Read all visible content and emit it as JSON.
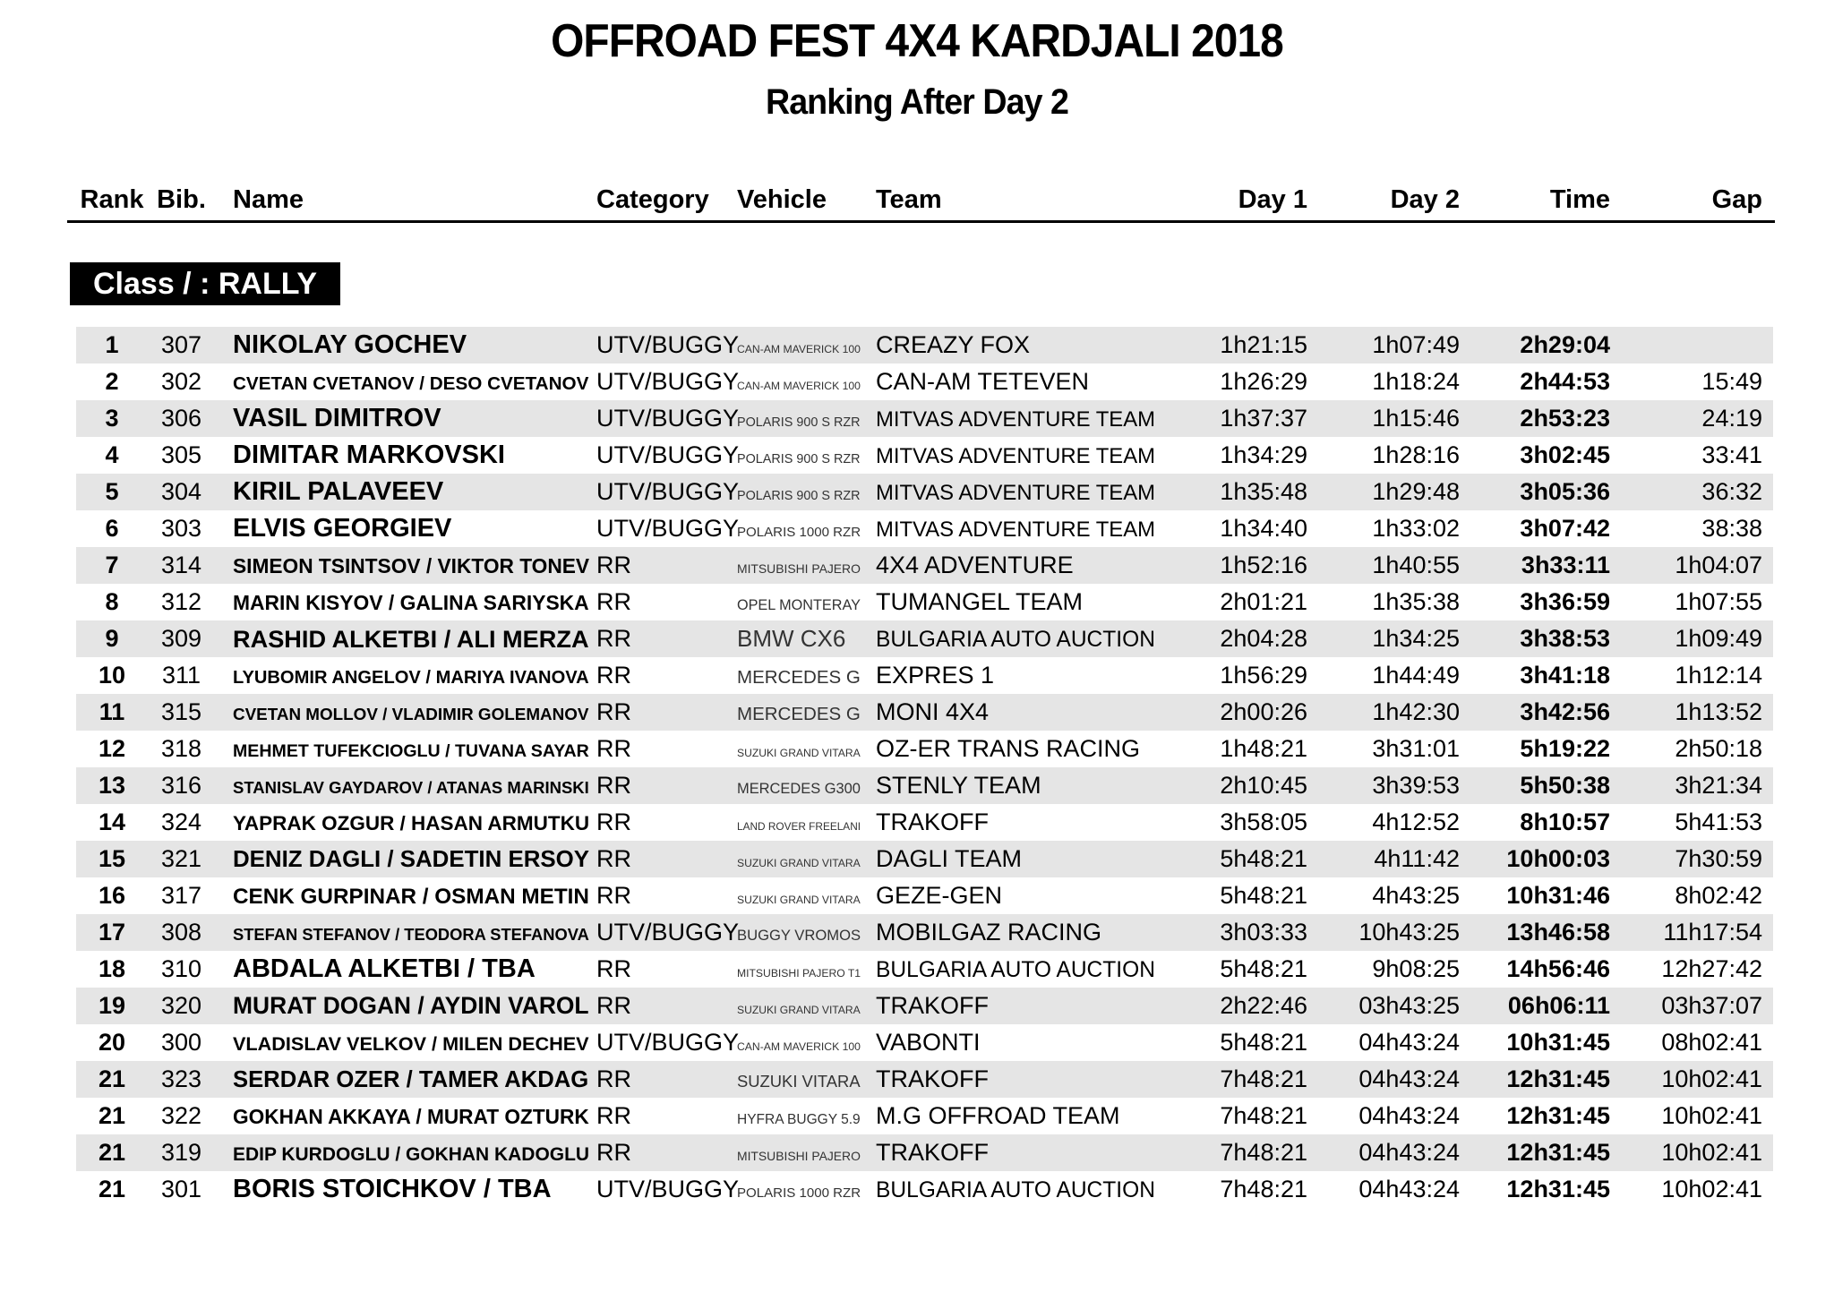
{
  "page": {
    "title": "OFFROAD FEST 4X4 KARDJALI 2018",
    "subtitle": "Ranking After Day 2"
  },
  "colors": {
    "row_stripe": "#e5e5e5",
    "class_bar_bg": "#000000",
    "class_bar_text": "#ffffff",
    "text": "#000000"
  },
  "table": {
    "class_label": "Class /  : RALLY",
    "columns": [
      "Rank",
      "Bib.",
      "Name",
      "Category",
      "Vehicle",
      "Team",
      "Day 1",
      "Day 2",
      "Time",
      "Gap"
    ],
    "rows": [
      {
        "rank": "1",
        "bib": "307",
        "name": "NIKOLAY GOCHEV",
        "category": "UTV/BUGGY",
        "vehicle": "CAN-AM MAVERICK 100",
        "team": "CREAZY FOX",
        "day1": "1h21:15",
        "day2": "1h07:49",
        "time": "2h29:04",
        "gap": ""
      },
      {
        "rank": "2",
        "bib": "302",
        "name": "CVETAN CVETANOV / DESO CVETANOV",
        "category": "UTV/BUGGY",
        "vehicle": "CAN-AM MAVERICK 100",
        "team": "CAN-AM TETEVEN",
        "day1": "1h26:29",
        "day2": "1h18:24",
        "time": "2h44:53",
        "gap": "15:49"
      },
      {
        "rank": "3",
        "bib": "306",
        "name": "VASIL DIMITROV",
        "category": "UTV/BUGGY",
        "vehicle": "POLARIS 900 S RZR",
        "team": "MITVAS ADVENTURE TEAM",
        "day1": "1h37:37",
        "day2": "1h15:46",
        "time": "2h53:23",
        "gap": "24:19"
      },
      {
        "rank": "4",
        "bib": "305",
        "name": "DIMITAR MARKOVSKI",
        "category": "UTV/BUGGY",
        "vehicle": "POLARIS 900 S RZR",
        "team": "MITVAS ADVENTURE TEAM",
        "day1": "1h34:29",
        "day2": "1h28:16",
        "time": "3h02:45",
        "gap": "33:41"
      },
      {
        "rank": "5",
        "bib": "304",
        "name": "KIRIL PALAVEEV",
        "category": "UTV/BUGGY",
        "vehicle": "POLARIS 900 S RZR",
        "team": "MITVAS ADVENTURE TEAM",
        "day1": "1h35:48",
        "day2": "1h29:48",
        "time": "3h05:36",
        "gap": "36:32"
      },
      {
        "rank": "6",
        "bib": "303",
        "name": "ELVIS GEORGIEV",
        "category": "UTV/BUGGY",
        "vehicle": "POLARIS 1000 RZR",
        "team": "MITVAS ADVENTURE TEAM",
        "day1": "1h34:40",
        "day2": "1h33:02",
        "time": "3h07:42",
        "gap": "38:38"
      },
      {
        "rank": "7",
        "bib": "314",
        "name": "SIMEON TSINTSOV / VIKTOR TONEV",
        "category": "RR",
        "vehicle": "MITSUBISHI PAJERO",
        "team": "4X4 ADVENTURE",
        "day1": "1h52:16",
        "day2": "1h40:55",
        "time": "3h33:11",
        "gap": "1h04:07"
      },
      {
        "rank": "8",
        "bib": "312",
        "name": "MARIN KISYOV / GALINA SARIYSKA",
        "category": "RR",
        "vehicle": "OPEL MONTERAY",
        "team": "TUMANGEL TEAM",
        "day1": "2h01:21",
        "day2": "1h35:38",
        "time": "3h36:59",
        "gap": "1h07:55"
      },
      {
        "rank": "9",
        "bib": "309",
        "name": "RASHID ALKETBI / ALI MERZA",
        "category": "RR",
        "vehicle": "BMW CX6",
        "team": "BULGARIA AUTO AUCTION",
        "day1": "2h04:28",
        "day2": "1h34:25",
        "time": "3h38:53",
        "gap": "1h09:49"
      },
      {
        "rank": "10",
        "bib": "311",
        "name": "LYUBOMIR ANGELOV / MARIYA IVANOVA",
        "category": "RR",
        "vehicle": "MERCEDES G",
        "team": "EXPRES 1",
        "day1": "1h56:29",
        "day2": "1h44:49",
        "time": "3h41:18",
        "gap": "1h12:14"
      },
      {
        "rank": "11",
        "bib": "315",
        "name": "CVETAN MOLLOV / VLADIMIR GOLEMANOV",
        "category": "RR",
        "vehicle": "MERCEDES G",
        "team": "MONI 4X4",
        "day1": "2h00:26",
        "day2": "1h42:30",
        "time": "3h42:56",
        "gap": "1h13:52"
      },
      {
        "rank": "12",
        "bib": "318",
        "name": "MEHMET TUFEKCIOGLU / TUVANA SAYAR",
        "category": "RR",
        "vehicle": "SUZUKI GRAND VITARA",
        "team": "OZ-ER TRANS RACING",
        "day1": "1h48:21",
        "day2": "3h31:01",
        "time": "5h19:22",
        "gap": "2h50:18"
      },
      {
        "rank": "13",
        "bib": "316",
        "name": "STANISLAV GAYDAROV / ATANAS MARINSKI",
        "category": "RR",
        "vehicle": "MERCEDES G300",
        "team": "STENLY TEAM",
        "day1": "2h10:45",
        "day2": "3h39:53",
        "time": "5h50:38",
        "gap": "3h21:34"
      },
      {
        "rank": "14",
        "bib": "324",
        "name": "YAPRAK OZGUR / HASAN ARMUTKU",
        "category": "RR",
        "vehicle": "LAND ROVER FREELANI",
        "team": "TRAKOFF",
        "day1": "3h58:05",
        "day2": "4h12:52",
        "time": "8h10:57",
        "gap": "5h41:53"
      },
      {
        "rank": "15",
        "bib": "321",
        "name": "DENIZ DAGLI / SADETIN ERSOY",
        "category": "RR",
        "vehicle": "SUZUKI GRAND VITARA",
        "team": "DAGLI TEAM",
        "day1": "5h48:21",
        "day2": "4h11:42",
        "time": "10h00:03",
        "gap": "7h30:59"
      },
      {
        "rank": "16",
        "bib": "317",
        "name": "CENK GURPINAR / OSMAN METIN",
        "category": "RR",
        "vehicle": "SUZUKI GRAND VITARA",
        "team": "GEZE-GEN",
        "day1": "5h48:21",
        "day2": "4h43:25",
        "time": "10h31:46",
        "gap": "8h02:42"
      },
      {
        "rank": "17",
        "bib": "308",
        "name": "STEFAN STEFANOV / TEODORA STEFANOVA",
        "category": "UTV/BUGGY",
        "vehicle": "BUGGY VROMOS",
        "team": "MOBILGAZ RACING",
        "day1": "3h03:33",
        "day2": "10h43:25",
        "time": "13h46:58",
        "gap": "11h17:54"
      },
      {
        "rank": "18",
        "bib": "310",
        "name": "ABDALA ALKETBI / TBA",
        "category": "RR",
        "vehicle": "MITSUBISHI PAJERO T1",
        "team": "BULGARIA AUTO AUCTION",
        "day1": "5h48:21",
        "day2": "9h08:25",
        "time": "14h56:46",
        "gap": "12h27:42"
      },
      {
        "rank": "19",
        "bib": "320",
        "name": "MURAT DOGAN / AYDIN VAROL",
        "category": "RR",
        "vehicle": "SUZUKI GRAND VITARA",
        "team": "TRAKOFF",
        "day1": "2h22:46",
        "day2": "03h43:25",
        "time": "06h06:11",
        "gap": "03h37:07"
      },
      {
        "rank": "20",
        "bib": "300",
        "name": "VLADISLAV VELKOV / MILEN DECHEV",
        "category": "UTV/BUGGY",
        "vehicle": "CAN-AM MAVERICK 100",
        "team": "VABONTI",
        "day1": "5h48:21",
        "day2": "04h43:24",
        "time": "10h31:45",
        "gap": "08h02:41"
      },
      {
        "rank": "21",
        "bib": "323",
        "name": "SERDAR OZER / TAMER AKDAG",
        "category": "RR",
        "vehicle": "SUZUKI VITARA",
        "team": "TRAKOFF",
        "day1": "7h48:21",
        "day2": "04h43:24",
        "time": "12h31:45",
        "gap": "10h02:41"
      },
      {
        "rank": "21",
        "bib": "322",
        "name": "GOKHAN AKKAYA / MURAT OZTURK",
        "category": "RR",
        "vehicle": "HYFRA BUGGY 5.9",
        "team": "M.G OFFROAD TEAM",
        "day1": "7h48:21",
        "day2": "04h43:24",
        "time": "12h31:45",
        "gap": "10h02:41"
      },
      {
        "rank": "21",
        "bib": "319",
        "name": "EDIP KURDOGLU / GOKHAN KADOGLU",
        "category": "RR",
        "vehicle": "MITSUBISHI PAJERO",
        "team": "TRAKOFF",
        "day1": "7h48:21",
        "day2": "04h43:24",
        "time": "12h31:45",
        "gap": "10h02:41"
      },
      {
        "rank": "21",
        "bib": "301",
        "name": "BORIS STOICHKOV / TBA",
        "category": "UTV/BUGGY",
        "vehicle": "POLARIS 1000 RZR",
        "team": "BULGARIA AUTO AUCTION",
        "day1": "7h48:21",
        "day2": "04h43:24",
        "time": "12h31:45",
        "gap": "10h02:41"
      }
    ]
  }
}
